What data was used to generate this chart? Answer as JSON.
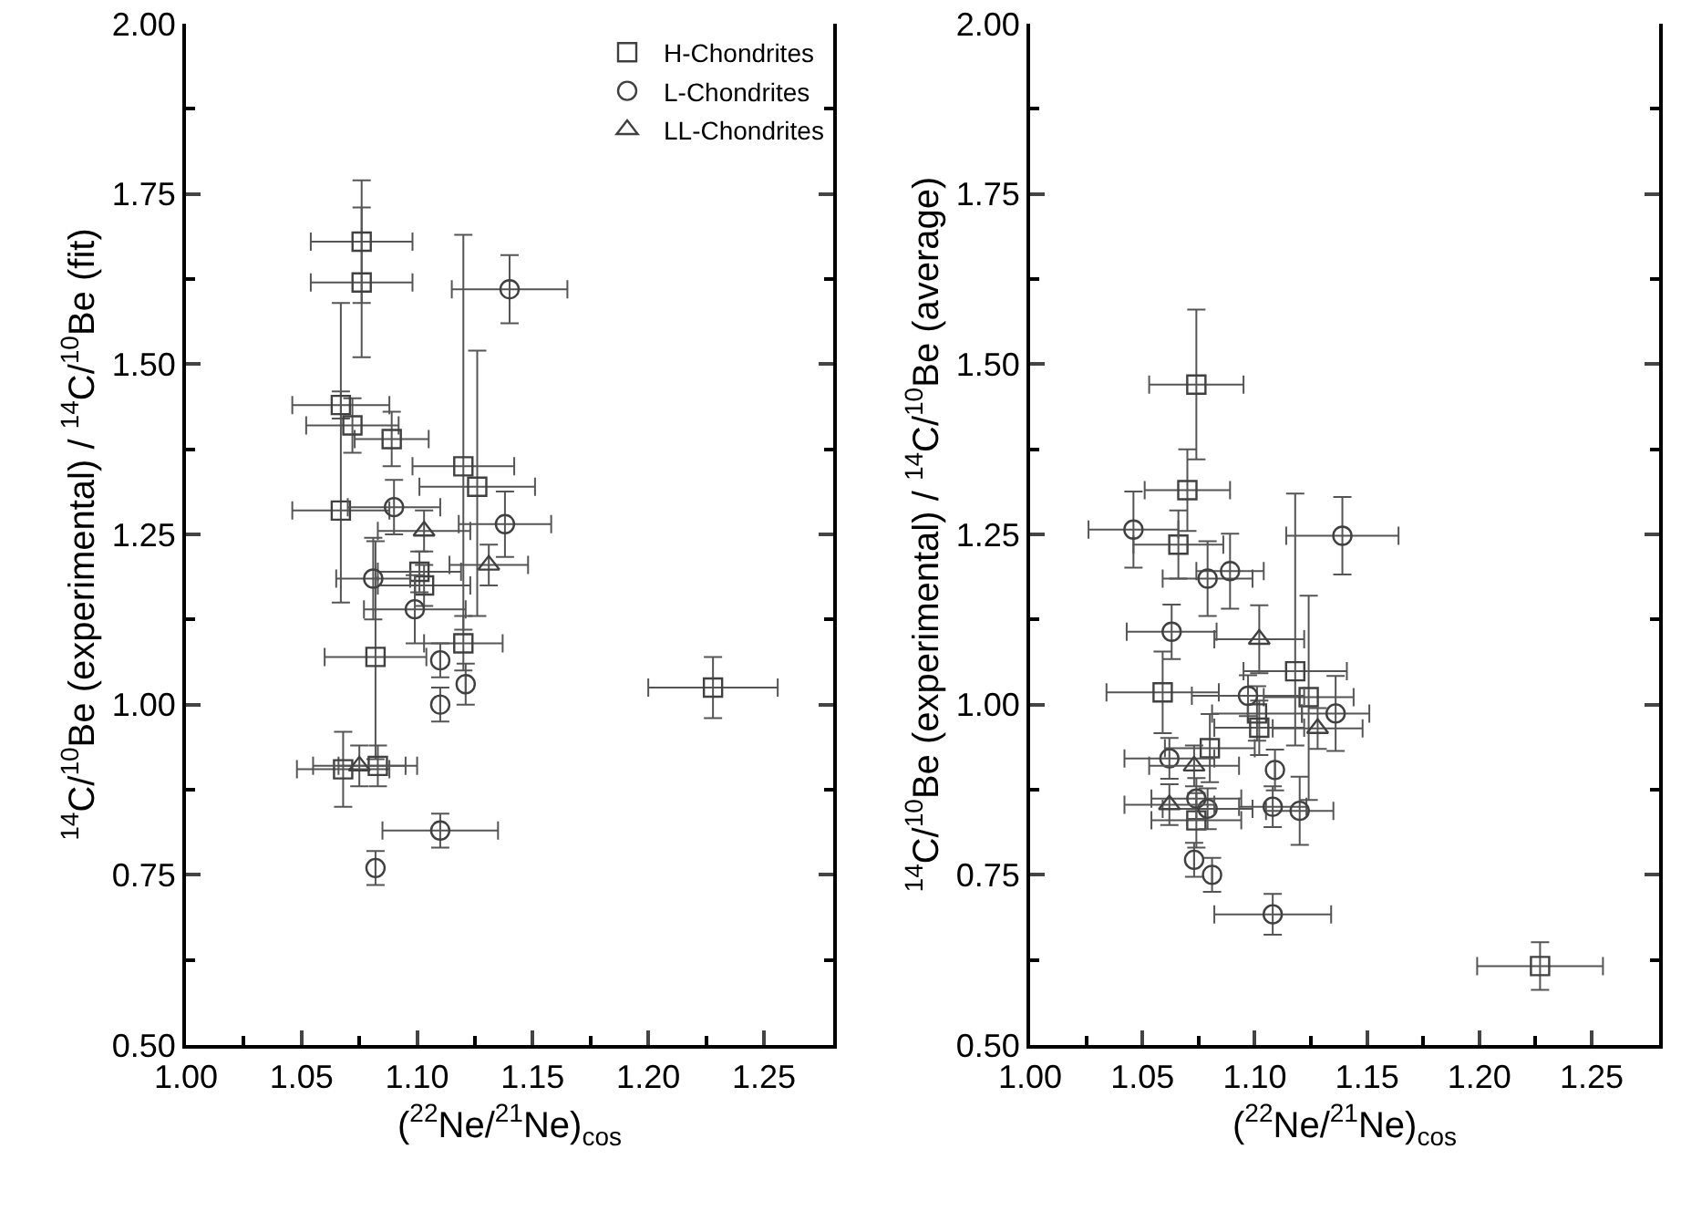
{
  "chart_data": [
    {
      "type": "scatter",
      "xlabel": "($^{22}$Ne/$^{21}$Ne)$_{cos}$",
      "ylabel": "$^{14}$C/$^{10}$Be (experimental) / $^{14}$C/$^{10}$Be (fit)",
      "xlim": [
        1.0,
        1.28
      ],
      "ylim": [
        0.5,
        2.0
      ],
      "xticks": [
        {
          "value": 1.0,
          "label": "1.00"
        },
        1.05,
        {
          "value": 1.1,
          "label": "1.10"
        },
        1.15,
        {
          "value": 1.2,
          "label": "1.20"
        },
        1.25
      ],
      "yticks": [
        {
          "value": 0.5,
          "label": "0.50"
        },
        0.75,
        {
          "value": 1.0,
          "label": "1.00"
        },
        1.25,
        {
          "value": 1.5,
          "label": "1.50"
        },
        1.75,
        {
          "value": 2.0,
          "label": "2.00"
        }
      ],
      "grid": false,
      "legend": "top right",
      "series": [
        {
          "name": "H-Chondrites",
          "color": "#404040",
          "marker": "square",
          "x": [
            1.076,
            1.076,
            1.067,
            1.072,
            1.089,
            1.067,
            1.12,
            1.126,
            1.101,
            1.103,
            1.082,
            1.12,
            1.068,
            1.083,
            1.228
          ],
          "values": [
            1.68,
            1.62,
            1.44,
            1.41,
            1.39,
            1.285,
            1.35,
            1.32,
            1.195,
            1.175,
            1.07,
            1.09,
            0.905,
            0.91,
            1.025
          ],
          "errors": [
            0.09,
            0.11,
            0.02,
            0.04,
            0.04,
            [
              1.15,
              1.59
            ],
            [
              1.11,
              1.69
            ],
            [
              1.13,
              1.52
            ],
            0.03,
            0.03,
            [
              0.92,
              1.24
            ],
            0.04,
            0.055,
            0.03,
            0.045
          ],
          "xerrors": [
            0.022,
            0.022,
            0.021,
            0.02,
            0.016,
            0.021,
            0.022,
            0.025,
            0.018,
            0.02,
            0.022,
            0.017,
            0.02,
            0.017,
            0.028
          ]
        },
        {
          "name": "L-Chondrites",
          "color": "#404040",
          "marker": "circle",
          "x": [
            1.14,
            1.09,
            1.081,
            1.099,
            1.11,
            1.11,
            1.121,
            1.138,
            1.11,
            1.082
          ],
          "values": [
            1.61,
            1.29,
            1.185,
            1.14,
            1.065,
            1.0,
            1.03,
            1.265,
            0.815,
            0.76
          ],
          "errors": [
            0.05,
            0.04,
            0.06,
            0.05,
            0.025,
            0.025,
            0.03,
            0.048,
            0.025,
            0.025
          ],
          "xerrors": [
            0.025,
            0.02,
            0.016,
            0.022,
            null,
            null,
            null,
            0.02,
            0.025,
            null
          ]
        },
        {
          "name": "LL-Chondrites",
          "color": "#404040",
          "marker": "triangle",
          "x": [
            1.103,
            1.131,
            1.075
          ],
          "values": [
            1.255,
            1.205,
            0.91
          ],
          "errors": [
            0.03,
            0.03,
            0.03
          ],
          "xerrors": [
            0.02,
            0.017,
            0.02
          ]
        }
      ]
    },
    {
      "type": "scatter",
      "xlabel": "($^{22}$Ne/$^{21}$Ne)$_{cos}$",
      "ylabel": "$^{14}$C/$^{10}$Be (experimental) / $^{14}$C/$^{10}$Be (average)",
      "xlim": [
        1.0,
        1.28
      ],
      "ylim": [
        0.5,
        2.0
      ],
      "xticks": [
        {
          "value": 1.0,
          "label": "1.00"
        },
        1.05,
        {
          "value": 1.1,
          "label": "1.10"
        },
        1.15,
        {
          "value": 1.2,
          "label": "1.20"
        },
        1.25
      ],
      "yticks": [
        {
          "value": 0.5,
          "label": "0.50"
        },
        0.75,
        {
          "value": 1.0,
          "label": "1.00"
        },
        1.25,
        {
          "value": 1.5,
          "label": "1.50"
        },
        1.75,
        {
          "value": 2.0,
          "label": "2.00"
        }
      ],
      "grid": false,
      "legend": false,
      "series": [
        {
          "color": "#404040",
          "marker": "square",
          "x": [
            1.074,
            1.07,
            1.066,
            1.059,
            1.101,
            1.102,
            1.08,
            1.074,
            1.118,
            1.124,
            1.227
          ],
          "values": [
            1.47,
            1.315,
            1.235,
            1.018,
            0.987,
            0.966,
            0.936,
            0.83,
            1.049,
            1.011,
            0.616
          ],
          "errors": [
            [
              1.36,
              1.58
            ],
            0.06,
            0.05,
            0.06,
            0.04,
            0.04,
            0.05,
            0.04,
            [
              0.94,
              1.31
            ],
            [
              0.86,
              1.16
            ],
            0.035
          ],
          "xerrors": [
            0.021,
            0.019,
            0.02,
            0.025,
            0.02,
            0.02,
            0.02,
            0.02,
            0.023,
            0.02,
            0.028
          ]
        },
        {
          "color": "#404040",
          "marker": "circle",
          "x": [
            1.046,
            1.079,
            1.089,
            1.063,
            1.097,
            1.062,
            1.074,
            1.079,
            1.073,
            1.081,
            1.139,
            1.136,
            1.109,
            1.108,
            1.12,
            1.108
          ],
          "values": [
            1.257,
            1.185,
            1.196,
            1.107,
            1.013,
            0.921,
            0.862,
            0.847,
            0.772,
            0.75,
            1.248,
            0.987,
            0.904,
            0.85,
            0.844,
            0.692
          ],
          "errors": [
            0.056,
            0.055,
            0.055,
            0.04,
            0.03,
            0.03,
            0.03,
            0.03,
            0.025,
            0.025,
            0.057,
            0.055,
            0.03,
            0.03,
            0.05,
            0.03
          ],
          "xerrors": [
            0.02,
            0.02,
            0.015,
            0.02,
            0.025,
            0.02,
            0.02,
            0.02,
            null,
            null,
            0.025,
            0.015,
            null,
            0.015,
            0.015,
            0.026
          ]
        },
        {
          "color": "#404040",
          "marker": "triangle",
          "x": [
            1.102,
            1.073,
            1.062,
            1.128
          ],
          "values": [
            1.096,
            0.91,
            0.853,
            0.965
          ],
          "errors": [
            0.05,
            0.03,
            0.03,
            0.03
          ],
          "xerrors": [
            0.02,
            0.02,
            0.02,
            0.02
          ]
        }
      ]
    }
  ]
}
